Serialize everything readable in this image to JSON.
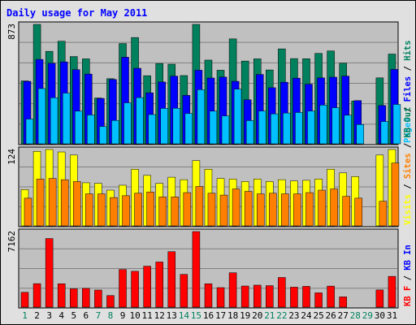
{
  "chart_data": {
    "type": "bar",
    "title": "Daily usage for May 2011",
    "days": [
      "1",
      "2",
      "3",
      "4",
      "5",
      "6",
      "7",
      "8",
      "9",
      "10",
      "11",
      "12",
      "13",
      "14",
      "15",
      "16",
      "17",
      "18",
      "19",
      "20",
      "21",
      "22",
      "23",
      "24",
      "25",
      "26",
      "27",
      "28",
      "29",
      "30",
      "31"
    ],
    "weekend_days": [
      "1",
      "7",
      "8",
      "14",
      "15",
      "21",
      "22",
      "28",
      "29"
    ],
    "panels": [
      {
        "id": "top",
        "max_label": "873",
        "ymax": 873,
        "legend": [
          {
            "text": "Pages",
            "color": "#00c0ff"
          },
          {
            "text": "Files",
            "color": "#0000ff"
          },
          {
            "text": "Hits",
            "color": "#00805c"
          }
        ],
        "series": [
          {
            "name": "Hits",
            "color": "#00805c",
            "values": [
              460,
              873,
              676,
              750,
              638,
              621,
              335,
              476,
              733,
              777,
              498,
              587,
              582,
              499,
              873,
              612,
              538,
              767,
              605,
              621,
              540,
              694,
              623,
              622,
              661,
              679,
              589,
              313,
              null,
              482,
              656
            ]
          },
          {
            "name": "Files",
            "color": "#0000ff",
            "values": [
              457,
              617,
              589,
              599,
              542,
              510,
              332,
              470,
              633,
              552,
              373,
              452,
              495,
              354,
              538,
              481,
              488,
              457,
              322,
              507,
              410,
              450,
              480,
              436,
              482,
              487,
              495,
              316,
              null,
              280,
              544
            ]
          },
          {
            "name": "Pages",
            "color": "#00c0ff",
            "values": [
              181,
              404,
              337,
              371,
              239,
              211,
              127,
              171,
              300,
              338,
              214,
              259,
              260,
              222,
              396,
              239,
              204,
              400,
              170,
              240,
              219,
              225,
              229,
              240,
              283,
              264,
              209,
              141,
              null,
              163,
              288
            ]
          }
        ]
      },
      {
        "id": "middle",
        "max_label": "124",
        "ymax": 124,
        "legend": [
          {
            "text": "Visits",
            "color": "#ffff00"
          },
          {
            "text": "Sites",
            "color": "#ff8000"
          },
          {
            "text": "KB Out",
            "color": "#00805c"
          }
        ],
        "series": [
          {
            "name": "Visits",
            "color": "#ffff00",
            "values": [
              59,
              121,
              124,
              120,
              115,
              70,
              69,
              58,
              66,
              92,
              82,
              69,
              79,
              75,
              106,
              92,
              77,
              76,
              72,
              76,
              72,
              75,
              73,
              74,
              76,
              92,
              86,
              80,
              null,
              115,
              124
            ]
          },
          {
            "name": "Sites",
            "color": "#ff8000",
            "values": [
              45,
              76,
              77,
              75,
              72,
              52,
              52,
              46,
              49,
              53,
              55,
              47,
              47,
              54,
              64,
              53,
              50,
              60,
              56,
              52,
              53,
              52,
              52,
              54,
              58,
              60,
              48,
              45,
              null,
              40,
              102
            ]
          }
        ]
      },
      {
        "id": "bottom",
        "max_label": "7162",
        "ymax": 7162,
        "legend": [
          {
            "text": "KB F",
            "color": "#ff0000"
          },
          {
            "text": "KB In",
            "color": "#0000ff"
          }
        ],
        "series": [
          {
            "name": "KB F",
            "color": "#ff0000",
            "values": [
              1404,
              2225,
              6504,
              2215,
              1737,
              1774,
              1618,
              1097,
              3568,
              3396,
              3880,
              4278,
              5259,
              3103,
              7162,
              2215,
              1850,
              3258,
              2001,
              2083,
              2037,
              2811,
              1893,
              1968,
              1354,
              1993,
              974,
              null,
              null,
              1628,
              2918
            ]
          }
        ]
      }
    ]
  }
}
